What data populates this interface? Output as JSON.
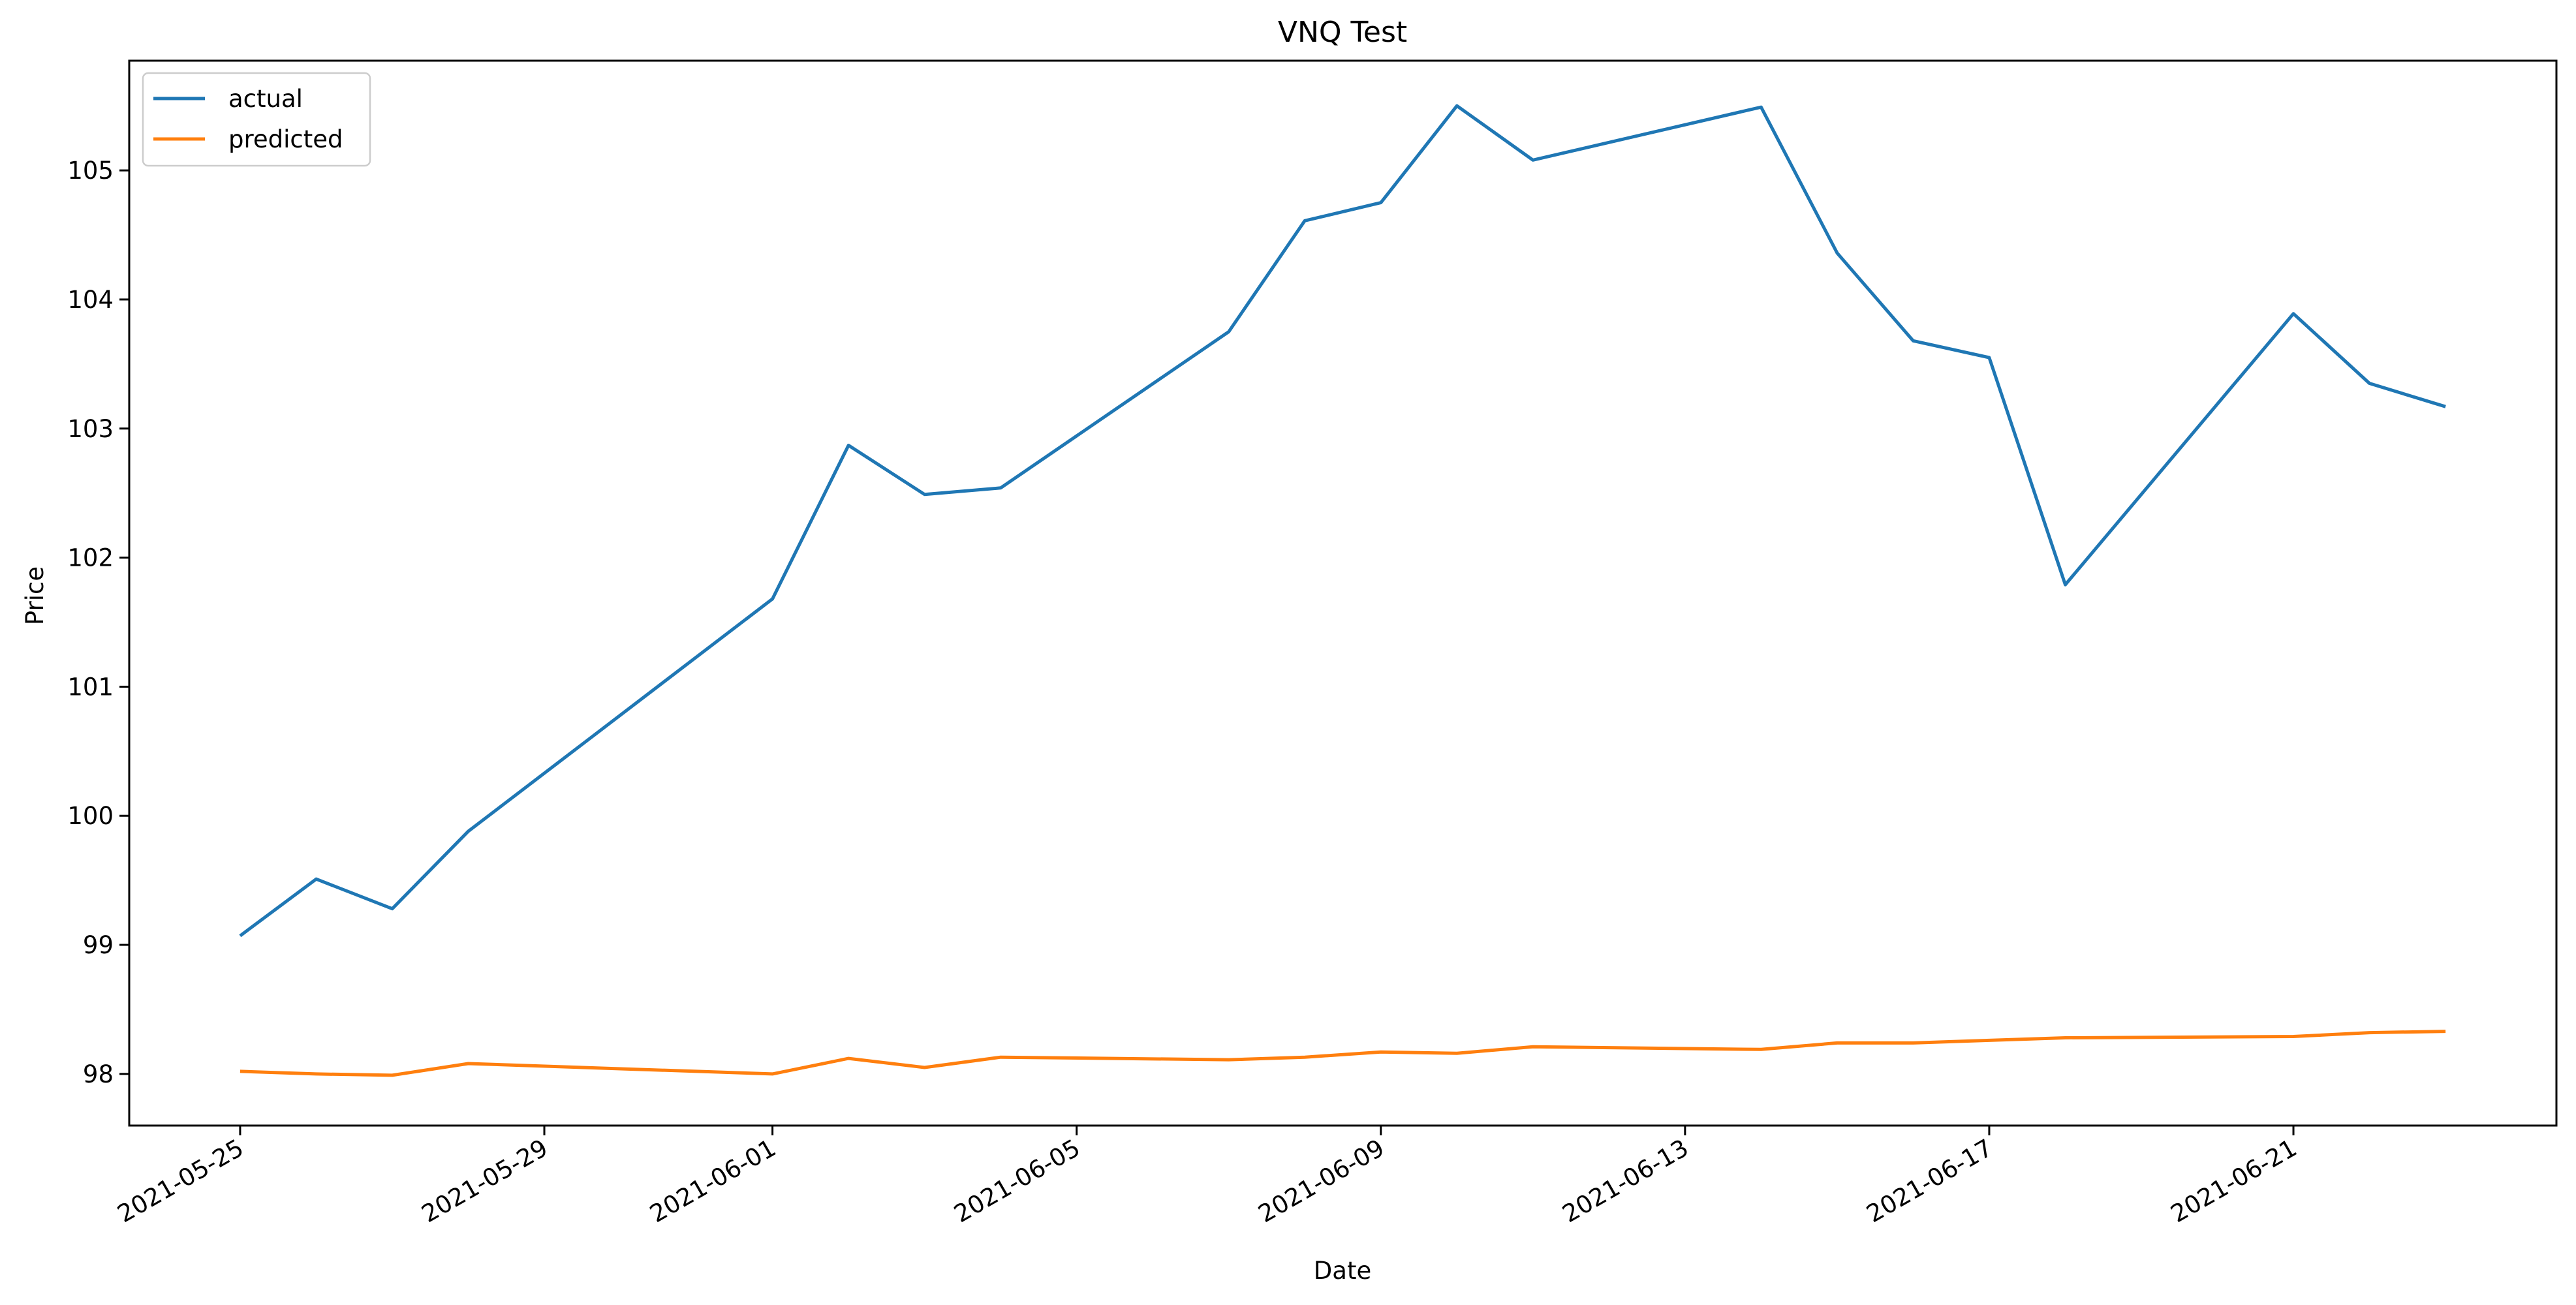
{
  "chart_data": {
    "type": "line",
    "title": "VNQ Test",
    "xlabel": "Date",
    "ylabel": "Price",
    "xlim": [
      "2021-05-23T13:00",
      "2021-06-24T11:00"
    ],
    "ylim": [
      97.6,
      105.85
    ],
    "x_ticks": [
      "2021-05-25",
      "2021-05-29",
      "2021-06-01",
      "2021-06-05",
      "2021-06-09",
      "2021-06-13",
      "2021-06-17",
      "2021-06-21"
    ],
    "y_ticks": [
      98,
      99,
      100,
      101,
      102,
      103,
      104,
      105
    ],
    "grid": false,
    "legend": "upper-left",
    "series": [
      {
        "name": "actual",
        "color": "#1f77b4",
        "x": [
          "2021-05-25",
          "2021-05-26",
          "2021-05-27",
          "2021-05-28",
          "2021-06-01",
          "2021-06-02",
          "2021-06-03",
          "2021-06-04",
          "2021-06-07",
          "2021-06-08",
          "2021-06-09",
          "2021-06-10",
          "2021-06-11",
          "2021-06-14",
          "2021-06-15",
          "2021-06-16",
          "2021-06-17",
          "2021-06-18",
          "2021-06-21",
          "2021-06-22",
          "2021-06-23"
        ],
        "y": [
          99.07,
          99.51,
          99.28,
          99.88,
          101.68,
          102.87,
          102.49,
          102.54,
          103.75,
          104.61,
          104.75,
          105.5,
          105.08,
          105.49,
          104.36,
          103.68,
          103.55,
          101.79,
          103.89,
          103.35,
          103.17
        ]
      },
      {
        "name": "predicted",
        "color": "#ff7f0e",
        "x": [
          "2021-05-25",
          "2021-05-26",
          "2021-05-27",
          "2021-05-28",
          "2021-06-01",
          "2021-06-02",
          "2021-06-03",
          "2021-06-04",
          "2021-06-07",
          "2021-06-08",
          "2021-06-09",
          "2021-06-10",
          "2021-06-11",
          "2021-06-14",
          "2021-06-15",
          "2021-06-16",
          "2021-06-17",
          "2021-06-18",
          "2021-06-21",
          "2021-06-22",
          "2021-06-23"
        ],
        "y": [
          98.02,
          98.0,
          97.99,
          98.08,
          98.0,
          98.12,
          98.05,
          98.13,
          98.11,
          98.13,
          98.17,
          98.16,
          98.21,
          98.19,
          98.24,
          98.24,
          98.26,
          98.28,
          98.29,
          98.32,
          98.33
        ]
      }
    ]
  }
}
